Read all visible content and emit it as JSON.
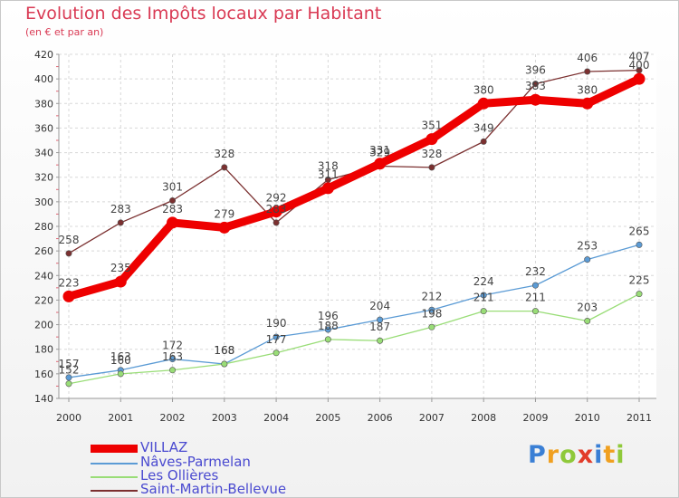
{
  "chart_data": {
    "type": "line",
    "title": "Evolution des Impôts locaux par Habitant",
    "subtitle": "(en € et par an)",
    "xlabel": "",
    "ylabel": "",
    "ylim": [
      140,
      420
    ],
    "yticks": [
      140,
      160,
      180,
      200,
      220,
      240,
      260,
      280,
      300,
      320,
      340,
      360,
      380,
      400,
      420
    ],
    "x": [
      "2000",
      "2001",
      "2002",
      "2003",
      "2004",
      "2005",
      "2006",
      "2007",
      "2008",
      "2009",
      "2010",
      "2011"
    ],
    "series": [
      {
        "name": "VILLAZ",
        "color": "#ee0000",
        "values": [
          223,
          235,
          283,
          279,
          292,
          311,
          331,
          351,
          380,
          383,
          380,
          400
        ]
      },
      {
        "name": "Nâves-Parmelan",
        "color": "#5b9bd5",
        "values": [
          157,
          163,
          172,
          168,
          190,
          196,
          204,
          212,
          224,
          232,
          253,
          265
        ]
      },
      {
        "name": "Les Ollières",
        "color": "#99dd77",
        "values": [
          152,
          160,
          163,
          168,
          177,
          188,
          187,
          198,
          211,
          211,
          203,
          225
        ]
      },
      {
        "name": "Saint-Martin-Bellevue",
        "color": "#7b3030",
        "values": [
          258,
          283,
          301,
          328,
          283,
          318,
          329,
          328,
          349,
          396,
          406,
          407
        ]
      }
    ],
    "grid": true,
    "legend_position": "bottom-left"
  },
  "logo": {
    "text": "Proxiti",
    "letter_colors": [
      "#3a7fd5",
      "#f0a020",
      "#8fc93a",
      "#e23c2a",
      "#3a7fd5",
      "#f0a020",
      "#8fc93a"
    ]
  }
}
